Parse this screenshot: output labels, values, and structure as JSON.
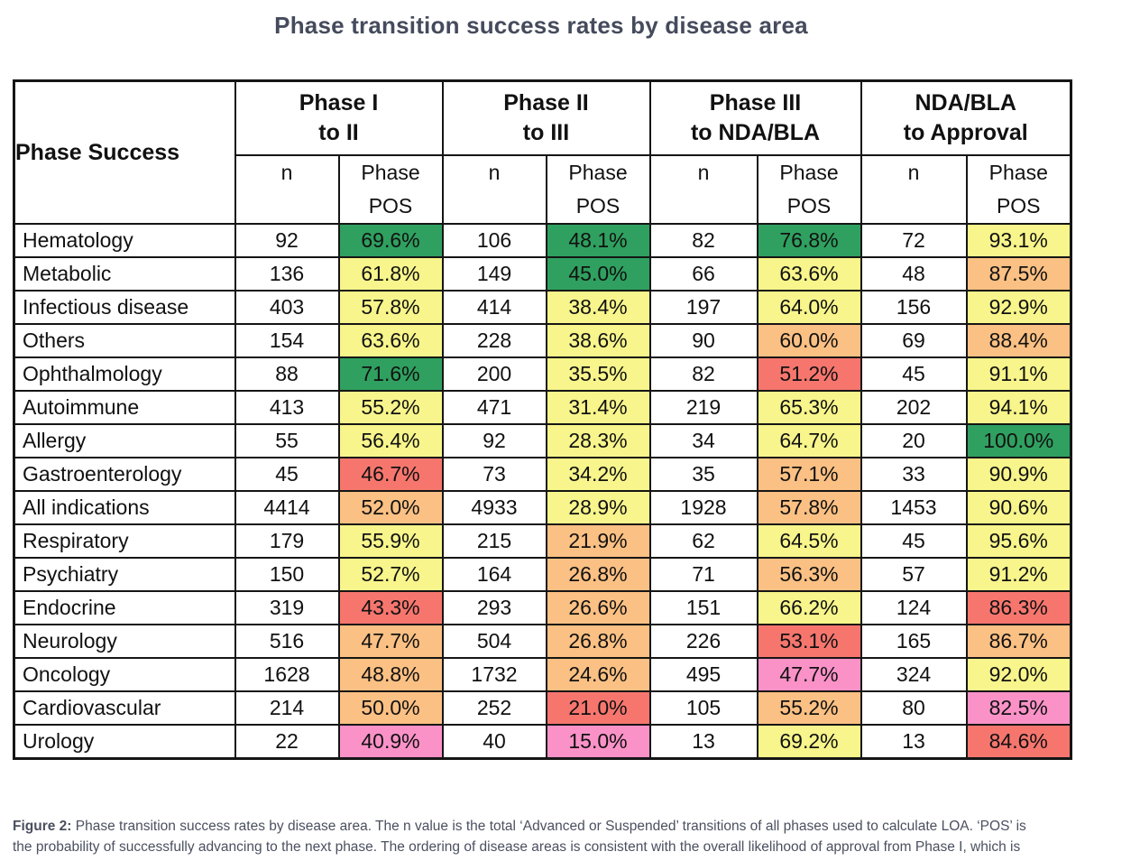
{
  "colors": {
    "green": "#2FA05F",
    "yellow": "#F7F58B",
    "orange": "#FBC083",
    "red": "#F6766E",
    "pink": "#FA92C8",
    "title_text": "#454B5C",
    "caption_text": "#4B5060",
    "table_border": "#151515"
  },
  "chart_data": {
    "type": "table",
    "title": "Phase transition success rates by disease area",
    "corner_header": "Phase Success",
    "column_groups": [
      {
        "line1": "Phase I",
        "line2": "to II"
      },
      {
        "line1": "Phase II",
        "line2": "to III"
      },
      {
        "line1": "Phase III",
        "line2": "to NDA/BLA"
      },
      {
        "line1": "NDA/BLA",
        "line2": "to Approval"
      }
    ],
    "sub_headers": {
      "n": "n",
      "pos_line1": "Phase",
      "pos_line2": "POS"
    },
    "rows": [
      {
        "area": "Hematology",
        "values": [
          "92",
          "69.6%",
          "106",
          "48.1%",
          "82",
          "76.8%",
          "72",
          "93.1%"
        ],
        "pos_colors": [
          "green",
          "green",
          "green",
          "yellow"
        ]
      },
      {
        "area": "Metabolic",
        "values": [
          "136",
          "61.8%",
          "149",
          "45.0%",
          "66",
          "63.6%",
          "48",
          "87.5%"
        ],
        "pos_colors": [
          "yellow",
          "green",
          "yellow",
          "orange"
        ]
      },
      {
        "area": "Infectious disease",
        "values": [
          "403",
          "57.8%",
          "414",
          "38.4%",
          "197",
          "64.0%",
          "156",
          "92.9%"
        ],
        "pos_colors": [
          "yellow",
          "yellow",
          "yellow",
          "yellow"
        ]
      },
      {
        "area": "Others",
        "values": [
          "154",
          "63.6%",
          "228",
          "38.6%",
          "90",
          "60.0%",
          "69",
          "88.4%"
        ],
        "pos_colors": [
          "yellow",
          "yellow",
          "orange",
          "orange"
        ]
      },
      {
        "area": "Ophthalmology",
        "values": [
          "88",
          "71.6%",
          "200",
          "35.5%",
          "82",
          "51.2%",
          "45",
          "91.1%"
        ],
        "pos_colors": [
          "green",
          "yellow",
          "red",
          "yellow"
        ]
      },
      {
        "area": "Autoimmune",
        "values": [
          "413",
          "55.2%",
          "471",
          "31.4%",
          "219",
          "65.3%",
          "202",
          "94.1%"
        ],
        "pos_colors": [
          "yellow",
          "yellow",
          "yellow",
          "yellow"
        ]
      },
      {
        "area": "Allergy",
        "values": [
          "55",
          "56.4%",
          "92",
          "28.3%",
          "34",
          "64.7%",
          "20",
          "100.0%"
        ],
        "pos_colors": [
          "yellow",
          "yellow",
          "yellow",
          "green"
        ]
      },
      {
        "area": "Gastroenterology",
        "values": [
          "45",
          "46.7%",
          "73",
          "34.2%",
          "35",
          "57.1%",
          "33",
          "90.9%"
        ],
        "pos_colors": [
          "red",
          "yellow",
          "orange",
          "yellow"
        ]
      },
      {
        "area": "All indications",
        "values": [
          "4414",
          "52.0%",
          "4933",
          "28.9%",
          "1928",
          "57.8%",
          "1453",
          "90.6%"
        ],
        "pos_colors": [
          "orange",
          "yellow",
          "orange",
          "yellow"
        ]
      },
      {
        "area": "Respiratory",
        "values": [
          "179",
          "55.9%",
          "215",
          "21.9%",
          "62",
          "64.5%",
          "45",
          "95.6%"
        ],
        "pos_colors": [
          "yellow",
          "orange",
          "yellow",
          "yellow"
        ]
      },
      {
        "area": "Psychiatry",
        "values": [
          "150",
          "52.7%",
          "164",
          "26.8%",
          "71",
          "56.3%",
          "57",
          "91.2%"
        ],
        "pos_colors": [
          "yellow",
          "orange",
          "orange",
          "yellow"
        ]
      },
      {
        "area": "Endocrine",
        "values": [
          "319",
          "43.3%",
          "293",
          "26.6%",
          "151",
          "66.2%",
          "124",
          "86.3%"
        ],
        "pos_colors": [
          "red",
          "orange",
          "yellow",
          "red"
        ]
      },
      {
        "area": "Neurology",
        "values": [
          "516",
          "47.7%",
          "504",
          "26.8%",
          "226",
          "53.1%",
          "165",
          "86.7%"
        ],
        "pos_colors": [
          "orange",
          "orange",
          "red",
          "orange"
        ]
      },
      {
        "area": "Oncology",
        "values": [
          "1628",
          "48.8%",
          "1732",
          "24.6%",
          "495",
          "47.7%",
          "324",
          "92.0%"
        ],
        "pos_colors": [
          "orange",
          "orange",
          "pink",
          "yellow"
        ]
      },
      {
        "area": "Cardiovascular",
        "values": [
          "214",
          "50.0%",
          "252",
          "21.0%",
          "105",
          "55.2%",
          "80",
          "82.5%"
        ],
        "pos_colors": [
          "orange",
          "red",
          "orange",
          "pink"
        ]
      },
      {
        "area": "Urology",
        "values": [
          "22",
          "40.9%",
          "40",
          "15.0%",
          "13",
          "69.2%",
          "13",
          "84.6%"
        ],
        "pos_colors": [
          "pink",
          "pink",
          "yellow",
          "red"
        ]
      }
    ]
  },
  "caption": {
    "label": "Figure 2:",
    "line1_rest": " Phase transition success rates by disease area. The n value is the total ‘Advanced or Suspended’ transitions of all phases used to calculate LOA. ‘POS’ is",
    "line2": "the probability of successfully advancing to the next phase. The ordering of disease areas is consistent with the overall likelihood of approval from Phase I, which is"
  }
}
